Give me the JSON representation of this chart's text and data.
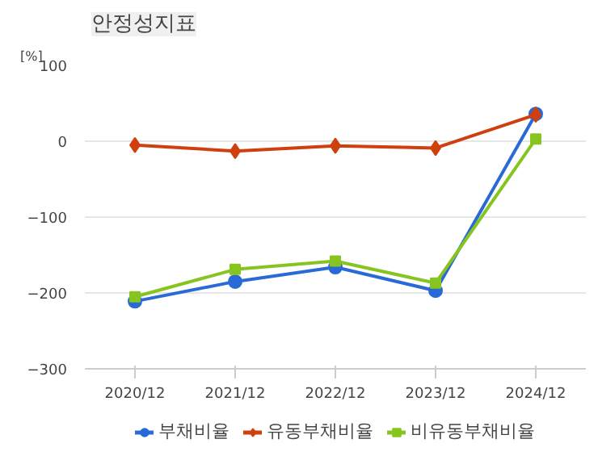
{
  "chart_data": {
    "type": "line",
    "title": "안정성지표",
    "ylabel": "[%]",
    "categories": [
      "2020/12",
      "2021/12",
      "2022/12",
      "2023/12",
      "2024/12"
    ],
    "series": [
      {
        "name": "부채비율",
        "color": "#2a6ad6",
        "marker": "circle",
        "values": [
          -211,
          -185,
          -166,
          -197,
          36
        ]
      },
      {
        "name": "유동부채비율",
        "color": "#d0400f",
        "marker": "diamond",
        "values": [
          -5,
          -13,
          -6,
          -9,
          35
        ]
      },
      {
        "name": "비유동부채비율",
        "color": "#86c520",
        "marker": "square",
        "values": [
          -205,
          -169,
          -158,
          -187,
          3
        ]
      }
    ],
    "ylim": [
      -300,
      100
    ],
    "yticks": [
      -300,
      -200,
      -100,
      0,
      100
    ],
    "grid": "y",
    "legend": "bottom"
  }
}
